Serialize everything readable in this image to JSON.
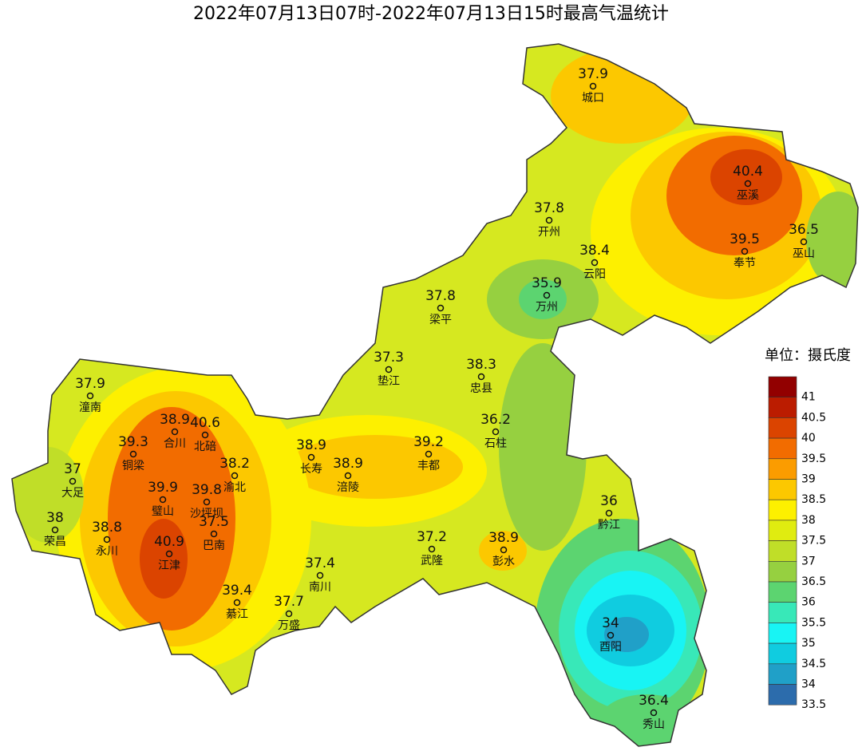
{
  "title": "2022年07月13日07时-2022年07月13日15时最高气温统计",
  "stations": [
    {
      "name": "城口",
      "value": 37.9
    },
    {
      "name": "巫溪",
      "value": 40.4
    },
    {
      "name": "开州",
      "value": 37.8
    },
    {
      "name": "巫山",
      "value": 36.5
    },
    {
      "name": "奉节",
      "value": 39.5
    },
    {
      "name": "云阳",
      "value": 38.4
    },
    {
      "name": "万州",
      "value": 35.9
    },
    {
      "name": "梁平",
      "value": 37.8
    },
    {
      "name": "垫江",
      "value": 37.3
    },
    {
      "name": "忠县",
      "value": 38.3
    },
    {
      "name": "潼南",
      "value": 37.9
    },
    {
      "name": "合川",
      "value": 38.9
    },
    {
      "name": "石柱",
      "value": 36.2
    },
    {
      "name": "北碚",
      "value": 40.6
    },
    {
      "name": "铜梁",
      "value": 39.3
    },
    {
      "name": "长寿",
      "value": 38.9
    },
    {
      "name": "丰都",
      "value": 39.2
    },
    {
      "name": "渝北",
      "value": 38.2
    },
    {
      "name": "涪陵",
      "value": 38.9
    },
    {
      "name": "大足",
      "value": 37
    },
    {
      "name": "璧山",
      "value": 39.9
    },
    {
      "name": "沙坪坝",
      "value": 39.8
    },
    {
      "name": "黔江",
      "value": 36
    },
    {
      "name": "荣昌",
      "value": 38
    },
    {
      "name": "巴南",
      "value": 37.5
    },
    {
      "name": "永川",
      "value": 38.8
    },
    {
      "name": "武隆",
      "value": 37.2
    },
    {
      "name": "彭水",
      "value": 38.9
    },
    {
      "name": "江津",
      "value": 40.9
    },
    {
      "name": "南川",
      "value": 37.4
    },
    {
      "name": "綦江",
      "value": 39.4
    },
    {
      "name": "万盛",
      "value": 37.7
    },
    {
      "name": "酉阳",
      "value": 34
    },
    {
      "name": "秀山",
      "value": 36.4
    }
  ],
  "legend": {
    "title": "单位：摄氏度",
    "levels": [
      41,
      40.5,
      40,
      39.5,
      39,
      38.5,
      38,
      37.5,
      37,
      36.5,
      36,
      35.5,
      35,
      34.5,
      34,
      33.5
    ],
    "colors": [
      "#920000",
      "#bb1c00",
      "#db4400",
      "#f26c00",
      "#fb9c00",
      "#fcc800",
      "#fdf000",
      "#e0ec10",
      "#c0de28",
      "#96d040",
      "#5cd470",
      "#38e8b8",
      "#18f4f4",
      "#10cce0",
      "#20a0c8",
      "#2c6cac"
    ]
  }
}
